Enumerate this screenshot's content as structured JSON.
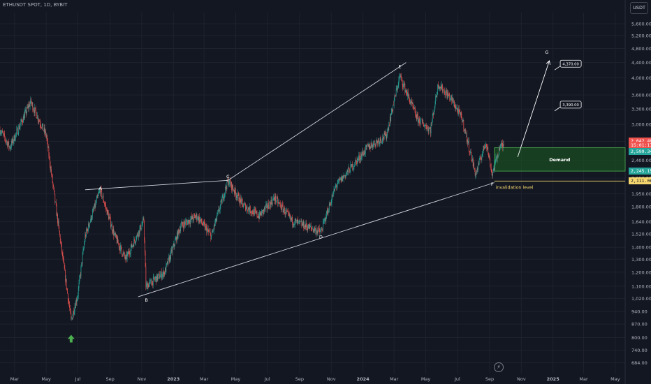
{
  "header": {
    "title": "ETHUSDT SPOT, 1D, BYBIT",
    "currency": "USDT"
  },
  "colors": {
    "bg": "#131722",
    "up": "#26a69a",
    "down": "#ef5350",
    "grid": "#1e222d",
    "line": "#d1d4dc",
    "demand": "#1b5e20",
    "invalidation": "#f5d76e"
  },
  "chart_data": {
    "type": "candlestick",
    "scale": "log",
    "ylim": [
      640,
      6000
    ],
    "x_ticks": [
      "Mar",
      "May",
      "Jul",
      "Sep",
      "Nov",
      "2023",
      "Mar",
      "May",
      "Jul",
      "Sep",
      "Nov",
      "2024",
      "Mar",
      "May",
      "Jul",
      "Sep",
      "Nov",
      "2025",
      "Mar",
      "May"
    ],
    "y_ticks": [
      "5,600.00",
      "5,200.00",
      "4,800.00",
      "4,400.00",
      "4,000.00",
      "3,600.00",
      "3,300.00",
      "3,000.00",
      "2,700.00",
      "2,400.00",
      "2,150.00",
      "1,950.00",
      "1,800.00",
      "1,640.00",
      "1,520.00",
      "1,400.00",
      "1,300.00",
      "1,200.00",
      "1,100.00",
      "1,020.00",
      "940.00",
      "870.00",
      "800.00",
      "740.00",
      "684.00"
    ],
    "price_path": [
      {
        "d": "2022-02-01",
        "p": 2900
      },
      {
        "d": "2022-02-20",
        "p": 2600
      },
      {
        "d": "2022-04-01",
        "p": 3450
      },
      {
        "d": "2022-05-01",
        "p": 2800
      },
      {
        "d": "2022-05-15",
        "p": 2000
      },
      {
        "d": "2022-06-18",
        "p": 890
      },
      {
        "d": "2022-07-01",
        "p": 1050
      },
      {
        "d": "2022-07-15",
        "p": 1500
      },
      {
        "d": "2022-08-13",
        "p": 2000
      },
      {
        "d": "2022-09-10",
        "p": 1500
      },
      {
        "d": "2022-10-01",
        "p": 1300
      },
      {
        "d": "2022-11-05",
        "p": 1650
      },
      {
        "d": "2022-11-09",
        "p": 1100
      },
      {
        "d": "2022-12-15",
        "p": 1200
      },
      {
        "d": "2023-01-15",
        "p": 1600
      },
      {
        "d": "2023-02-15",
        "p": 1700
      },
      {
        "d": "2023-03-15",
        "p": 1500
      },
      {
        "d": "2023-04-16",
        "p": 2120
      },
      {
        "d": "2023-05-15",
        "p": 1820
      },
      {
        "d": "2023-06-15",
        "p": 1700
      },
      {
        "d": "2023-07-15",
        "p": 1900
      },
      {
        "d": "2023-08-17",
        "p": 1650
      },
      {
        "d": "2023-10-12",
        "p": 1540
      },
      {
        "d": "2023-11-10",
        "p": 2050
      },
      {
        "d": "2023-12-10",
        "p": 2300
      },
      {
        "d": "2024-01-10",
        "p": 2600
      },
      {
        "d": "2024-02-15",
        "p": 2800
      },
      {
        "d": "2024-03-12",
        "p": 4050
      },
      {
        "d": "2024-04-15",
        "p": 3100
      },
      {
        "d": "2024-05-10",
        "p": 2900
      },
      {
        "d": "2024-05-25",
        "p": 3850
      },
      {
        "d": "2024-06-20",
        "p": 3500
      },
      {
        "d": "2024-07-10",
        "p": 3100
      },
      {
        "d": "2024-08-05",
        "p": 2200
      },
      {
        "d": "2024-08-25",
        "p": 2700
      },
      {
        "d": "2024-09-06",
        "p": 2200
      },
      {
        "d": "2024-09-20",
        "p": 2600
      },
      {
        "d": "2024-09-28",
        "p": 2642.4
      }
    ],
    "wave_labels": [
      {
        "text": "A",
        "d": "2022-08-13",
        "p": 2000
      },
      {
        "text": "B",
        "d": "2022-11-10",
        "p": 1000
      },
      {
        "text": "C",
        "d": "2023-04-16",
        "p": 2150
      },
      {
        "text": "D",
        "d": "2023-10-12",
        "p": 1480
      },
      {
        "text": "E",
        "d": "2024-03-12",
        "p": 4250
      },
      {
        "text": "F",
        "d": "2024-09-06",
        "p": 2050
      },
      {
        "text": "G",
        "d": "2024-12-20",
        "p": 4650
      }
    ],
    "trendlines": [
      {
        "from": {
          "d": "2022-07-15",
          "p": 2000
        },
        "to": {
          "d": "2023-04-16",
          "p": 2120
        }
      },
      {
        "from": {
          "d": "2023-04-16",
          "p": 2120
        },
        "to": {
          "d": "2024-03-24",
          "p": 4400
        }
      },
      {
        "from": {
          "d": "2022-10-25",
          "p": 1030
        },
        "to": {
          "d": "2024-09-10",
          "p": 2090
        }
      }
    ],
    "arrow": {
      "from": {
        "d": "2024-10-25",
        "p": 2450
      },
      "to": {
        "d": "2024-12-25",
        "p": 4450
      }
    },
    "demand_zone": {
      "label": "Demand",
      "top": 2595,
      "bottom": 2245,
      "from": "2024-09-10"
    },
    "invalidation": {
      "label": "invalidation level",
      "price": 2111.06,
      "from": "2024-09-10"
    },
    "targets": [
      {
        "label": "4,370.00",
        "price": 4370,
        "d": "2025-01-15"
      },
      {
        "label": "3,390.00",
        "price": 3390,
        "d": "2025-01-15"
      }
    ],
    "price_tags": [
      {
        "label": "2,642.40",
        "price": 2700,
        "color": "#ef5350"
      },
      {
        "label": "15:01:17",
        "price": 2640,
        "color": "#ef5350"
      },
      {
        "label": "2,599.34",
        "price": 2530,
        "color": "#26a69a"
      },
      {
        "label": "2,245.15",
        "price": 2245,
        "color": "#26a69a"
      },
      {
        "label": "2,111.06",
        "price": 2111,
        "color": "#f5d76e"
      }
    ],
    "start_marker": {
      "d": "2022-06-18",
      "p": 850
    }
  }
}
